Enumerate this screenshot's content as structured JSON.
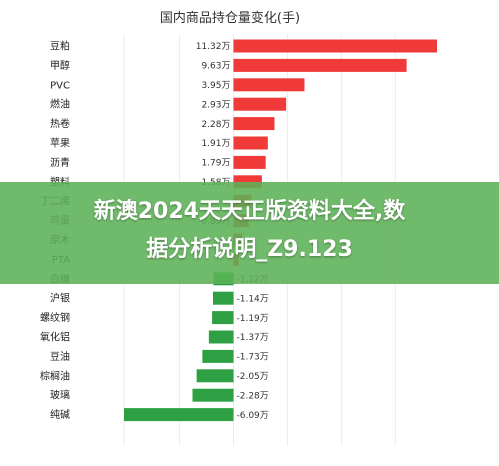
{
  "chart_data": {
    "type": "bar",
    "orientation": "horizontal",
    "title": "国内商品持仓量变化(手)",
    "categories": [
      "豆粕",
      "甲醇",
      "PVC",
      "燃油",
      "热卷",
      "苹果",
      "沥青",
      "塑料",
      "丁二烯",
      "鸡蛋",
      "原木",
      "PTA",
      "白糖",
      "沪银",
      "螺纹钢",
      "氧化铝",
      "豆油",
      "棕榈油",
      "玻璃",
      "纯碱"
    ],
    "values": [
      11.32,
      9.63,
      3.95,
      2.93,
      2.28,
      1.91,
      1.79,
      1.58,
      1.0,
      0.85,
      0.5,
      0.3,
      -1.12,
      -1.14,
      -1.19,
      -1.37,
      -1.73,
      -2.05,
      -2.28,
      -6.09
    ],
    "value_labels": [
      "11.32万",
      "9.63万",
      "3.95万",
      "2.93万",
      "2.28万",
      "1.91万",
      "1.79万",
      "1.58万",
      "",
      "0.85万",
      "",
      "",
      "-1.12万",
      "-1.14万",
      "-1.19万",
      "-1.37万",
      "-1.73万",
      "-2.05万",
      "-2.28万",
      "-6.09万"
    ],
    "unit": "万",
    "xlim": [
      -6.09,
      11.32
    ],
    "colors": {
      "positive": "#f03a3a",
      "negative": "#2ea043"
    },
    "grid": true,
    "legend": "none"
  },
  "overlay": {
    "line1": "新澳2024天天正版资料大全,数",
    "line2": "据分析说明_Z9.123"
  }
}
